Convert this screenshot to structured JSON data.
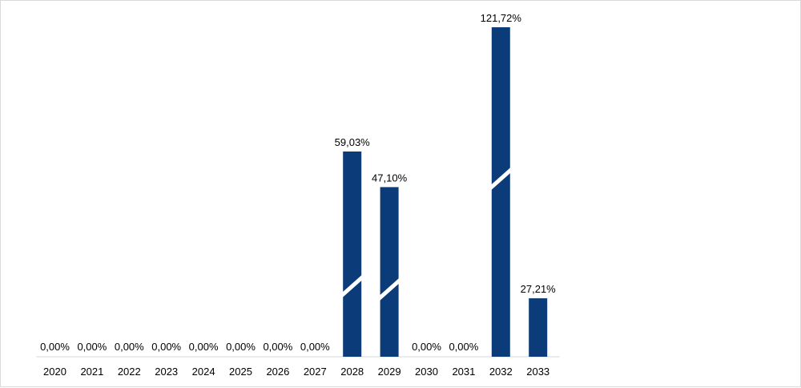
{
  "chart_data": {
    "type": "bar",
    "categories": [
      "2020",
      "2021",
      "2022",
      "2023",
      "2024",
      "2025",
      "2026",
      "2027",
      "2028",
      "2029",
      "2030",
      "2031",
      "2032",
      "2033"
    ],
    "values": [
      0,
      0,
      0,
      0,
      0,
      0,
      0,
      0,
      59.03,
      47.1,
      0,
      0,
      121.72,
      27.21
    ],
    "data_labels": [
      "0,00%",
      "0,00%",
      "0,00%",
      "0,00%",
      "0,00%",
      "0,00%",
      "0,00%",
      "0,00%",
      "59,03%",
      "47,10%",
      "0,00%",
      "0,00%",
      "121,72%",
      "27,21%"
    ],
    "broken_axis_bars": [
      "2028",
      "2029",
      "2032"
    ],
    "title": "",
    "xlabel": "",
    "ylabel": "",
    "grid": false,
    "bar_color": "#0b3b78"
  }
}
